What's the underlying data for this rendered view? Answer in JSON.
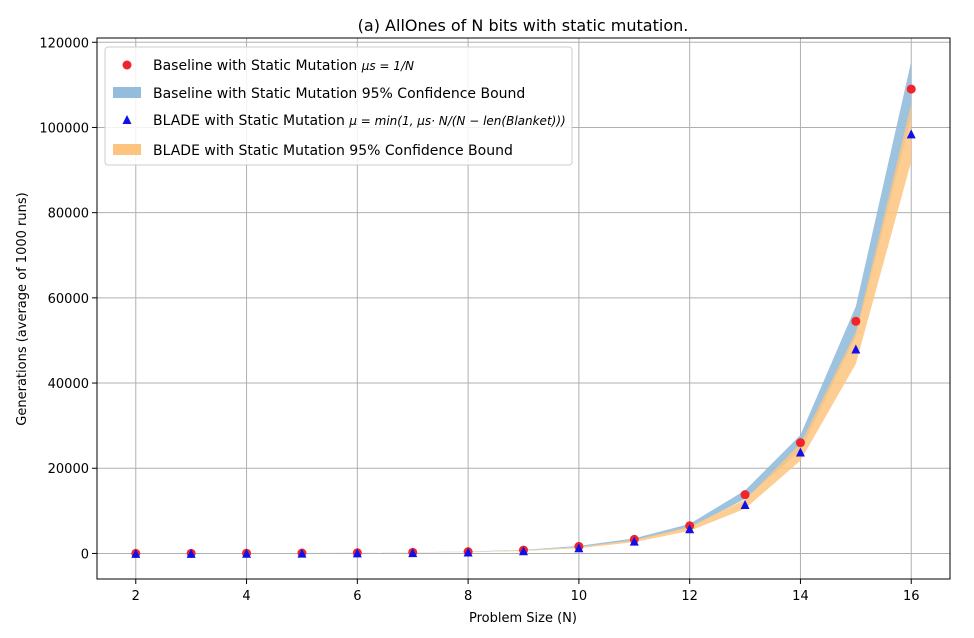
{
  "chart_data": {
    "type": "line",
    "title": "(a) AllOnes of N bits with static mutation.",
    "xlabel": "Problem Size (N)",
    "ylabel": "Generations (average of 1000 runs)",
    "xlim": [
      1.3,
      16.7
    ],
    "ylim": [
      -6000,
      121000
    ],
    "x_ticks": [
      2,
      4,
      6,
      8,
      10,
      12,
      14,
      16
    ],
    "y_ticks": [
      0,
      20000,
      40000,
      60000,
      80000,
      100000,
      120000
    ],
    "grid": true,
    "legend_position": "upper-left",
    "x": [
      2,
      3,
      4,
      5,
      6,
      7,
      8,
      9,
      10,
      11,
      12,
      13,
      14,
      15,
      16
    ],
    "series": [
      {
        "name": "Baseline with Static Mutation μs = 1/N",
        "kind": "points",
        "marker": "circle",
        "color": "#f0242a",
        "values": [
          10,
          25,
          55,
          95,
          160,
          260,
          420,
          780,
          1650,
          3300,
          6500,
          13800,
          26000,
          54500,
          109000
        ]
      },
      {
        "name": "Baseline with Static Mutation 95% Confidence Bound",
        "kind": "band",
        "color": "#94bcdc",
        "lower": [
          5,
          20,
          45,
          85,
          145,
          240,
          390,
          720,
          1520,
          3050,
          6050,
          12800,
          24200,
          51000,
          102500
        ],
        "upper": [
          15,
          30,
          65,
          105,
          175,
          280,
          450,
          840,
          1780,
          3550,
          6950,
          14800,
          27800,
          58000,
          115500
        ]
      },
      {
        "name": "BLADE with Static Mutation μ = min(1, μs · N / (N − len(Blanket)))",
        "kind": "points",
        "marker": "triangle",
        "color": "#1010e8",
        "values": [
          5,
          15,
          35,
          70,
          120,
          200,
          330,
          620,
          1350,
          2900,
          5800,
          11500,
          23800,
          48000,
          98500
        ]
      },
      {
        "name": "BLADE with Static Mutation 95% Confidence Bound",
        "kind": "band",
        "color": "#fdc47f",
        "lower": [
          2,
          10,
          28,
          60,
          105,
          180,
          300,
          560,
          1220,
          2650,
          5300,
          10500,
          21800,
          44500,
          92000
        ],
        "upper": [
          10,
          22,
          45,
          80,
          135,
          220,
          360,
          680,
          1480,
          3150,
          6300,
          12600,
          25800,
          52000,
          105500
        ]
      }
    ]
  },
  "legend": [
    {
      "prefix": "Baseline with Static Mutation ",
      "math": "μs = 1/N"
    },
    {
      "prefix": "Baseline with Static Mutation 95% Confidence Bound",
      "math": ""
    },
    {
      "prefix": "BLADE with Static Mutation ",
      "math": "μ = min(1, μs· N/(N − len(Blanket)))"
    },
    {
      "prefix": "BLADE with Static Mutation 95% Confidence Bound",
      "math": ""
    }
  ]
}
